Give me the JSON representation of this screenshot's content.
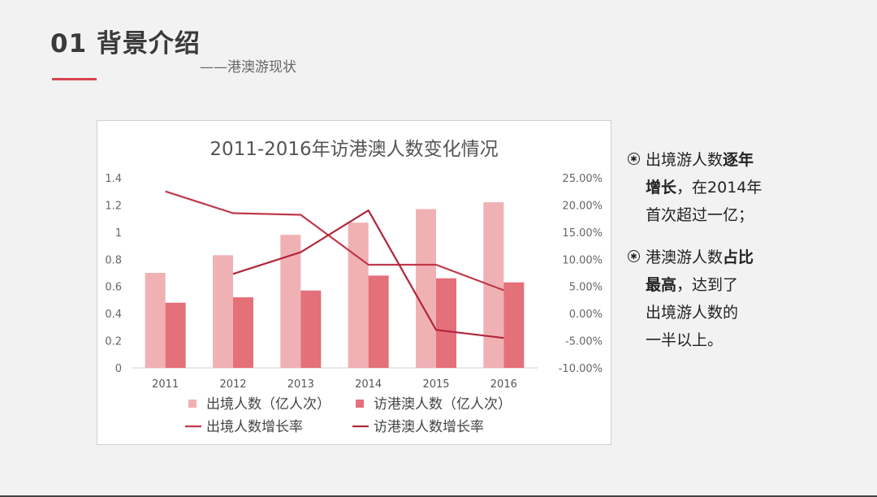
{
  "header": {
    "title": "01 背景介绍",
    "subtitle": "——港澳游现状"
  },
  "notes": [
    {
      "bullet_icon": "asterisk-circle-icon",
      "lines": [
        [
          {
            "t": "出境游人数"
          },
          {
            "t": "逐年",
            "b": true
          }
        ],
        [
          {
            "t": "增长",
            "b": true
          },
          {
            "t": "，在2014年"
          }
        ],
        [
          {
            "t": "首次超过一亿；"
          }
        ]
      ]
    },
    {
      "bullet_icon": "asterisk-circle-icon",
      "lines": [
        [
          {
            "t": "港澳游人数"
          },
          {
            "t": "占比",
            "b": true
          }
        ],
        [
          {
            "t": "最高",
            "b": true
          },
          {
            "t": "，达到了"
          }
        ],
        [
          {
            "t": "出境游人数的"
          }
        ],
        [
          {
            "t": "一半以上。"
          }
        ]
      ]
    }
  ],
  "colors": {
    "accent": "#d9434f",
    "bar_light": "#f0b1b4",
    "bar_dark": "#e4707a",
    "line_main": "#c0394a",
    "line_second": "#b0263b"
  },
  "chart_data": {
    "type": "bar",
    "title": "2011-2016年访港澳人数变化情况",
    "categories": [
      "2011",
      "2012",
      "2013",
      "2014",
      "2015",
      "2016"
    ],
    "y_left": {
      "ylim": [
        0,
        1.4
      ],
      "ticks": [
        "1.4",
        "1.2",
        "1",
        "0.8",
        "0.6",
        "0.4",
        "0.2",
        "0"
      ]
    },
    "y_right": {
      "ylim": [
        -10,
        25
      ],
      "ticks": [
        "25.00%",
        "20.00%",
        "15.00%",
        "10.00%",
        "5.00%",
        "0.00%",
        "-5.00%",
        "-10.00%"
      ]
    },
    "series": [
      {
        "name": "出境人数（亿人次）",
        "kind": "bar",
        "axis": "left",
        "values": [
          0.7,
          0.83,
          0.98,
          1.07,
          1.17,
          1.22
        ]
      },
      {
        "name": "访港澳人数（亿人次）",
        "kind": "bar",
        "axis": "left",
        "values": [
          0.48,
          0.52,
          0.57,
          0.68,
          0.66,
          0.63
        ]
      },
      {
        "name": "出境人数增长率",
        "kind": "line",
        "axis": "right",
        "values": [
          22.5,
          18.5,
          18.2,
          9.0,
          9.0,
          4.3
        ]
      },
      {
        "name": "访港澳人数增长率",
        "kind": "line",
        "axis": "right",
        "values": [
          null,
          7.3,
          11.3,
          19.0,
          -3.0,
          -4.5
        ]
      }
    ],
    "legend_placement": "bottom",
    "grid": false
  }
}
